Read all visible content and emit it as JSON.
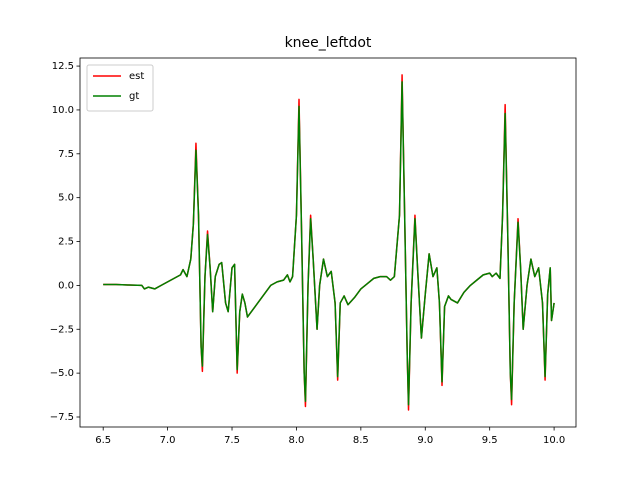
{
  "chart_data": {
    "type": "line",
    "title": "knee_leftdot",
    "x": [
      6.5,
      6.6,
      6.7,
      6.8,
      6.82,
      6.85,
      6.9,
      6.95,
      7.0,
      7.05,
      7.1,
      7.12,
      7.15,
      7.18,
      7.2,
      7.22,
      7.24,
      7.26,
      7.27,
      7.29,
      7.31,
      7.33,
      7.35,
      7.37,
      7.4,
      7.42,
      7.45,
      7.47,
      7.5,
      7.52,
      7.54,
      7.56,
      7.58,
      7.6,
      7.62,
      7.65,
      7.7,
      7.75,
      7.8,
      7.85,
      7.9,
      7.93,
      7.95,
      7.97,
      8.0,
      8.02,
      8.04,
      8.06,
      8.07,
      8.09,
      8.11,
      8.13,
      8.16,
      8.18,
      8.21,
      8.24,
      8.27,
      8.3,
      8.32,
      8.34,
      8.37,
      8.4,
      8.45,
      8.5,
      8.55,
      8.6,
      8.65,
      8.7,
      8.73,
      8.76,
      8.8,
      8.82,
      8.84,
      8.86,
      8.87,
      8.89,
      8.92,
      8.94,
      8.97,
      9.0,
      9.03,
      9.06,
      9.09,
      9.11,
      9.13,
      9.15,
      9.18,
      9.2,
      9.25,
      9.3,
      9.35,
      9.4,
      9.45,
      9.5,
      9.52,
      9.55,
      9.58,
      9.6,
      9.62,
      9.64,
      9.66,
      9.67,
      9.69,
      9.72,
      9.74,
      9.76,
      9.79,
      9.82,
      9.85,
      9.88,
      9.91,
      9.93,
      9.95,
      9.97,
      9.98,
      10.0
    ],
    "series": [
      {
        "name": "est",
        "color": "#ff0000",
        "values": [
          0.05,
          0.05,
          0.02,
          0.0,
          -0.2,
          -0.1,
          -0.2,
          0.0,
          0.2,
          0.4,
          0.6,
          0.9,
          0.5,
          1.5,
          3.5,
          8.1,
          4.0,
          -3.5,
          -4.9,
          0.5,
          3.1,
          1.0,
          -1.5,
          0.5,
          1.2,
          1.3,
          -1.0,
          -1.5,
          1.0,
          1.2,
          -5.0,
          -1.5,
          -0.5,
          -1.0,
          -1.8,
          -1.5,
          -1.0,
          -0.5,
          0.0,
          0.2,
          0.3,
          0.6,
          0.2,
          0.5,
          4.0,
          10.6,
          3.0,
          -5.0,
          -6.9,
          0.0,
          4.0,
          1.5,
          -2.5,
          0.0,
          1.5,
          0.5,
          0.8,
          -1.0,
          -5.4,
          -1.0,
          -0.6,
          -1.1,
          -0.7,
          -0.2,
          0.1,
          0.4,
          0.5,
          0.5,
          0.3,
          0.5,
          4.0,
          12.0,
          4.0,
          -4.0,
          -7.1,
          -1.0,
          4.0,
          1.0,
          -3.0,
          -0.5,
          1.8,
          0.5,
          1.0,
          -1.0,
          -5.7,
          -1.2,
          -0.6,
          -0.8,
          -1.0,
          -0.4,
          0.0,
          0.3,
          0.6,
          0.7,
          0.5,
          0.7,
          0.4,
          4.0,
          10.3,
          3.0,
          -5.0,
          -6.8,
          -1.0,
          3.8,
          1.0,
          -2.5,
          0.0,
          1.5,
          0.5,
          1.0,
          -1.0,
          -5.4,
          -0.5,
          1.0,
          -2.0,
          -1.0
        ]
      },
      {
        "name": "gt",
        "color": "#008000",
        "values": [
          0.05,
          0.05,
          0.02,
          0.0,
          -0.2,
          -0.1,
          -0.2,
          0.0,
          0.2,
          0.4,
          0.6,
          0.9,
          0.5,
          1.5,
          3.5,
          7.7,
          4.0,
          -3.5,
          -4.6,
          0.5,
          2.9,
          1.0,
          -1.5,
          0.5,
          1.2,
          1.3,
          -1.0,
          -1.5,
          1.0,
          1.2,
          -4.8,
          -1.5,
          -0.5,
          -1.0,
          -1.8,
          -1.5,
          -1.0,
          -0.5,
          0.0,
          0.2,
          0.3,
          0.6,
          0.2,
          0.5,
          4.0,
          10.2,
          3.0,
          -5.0,
          -6.6,
          0.0,
          3.8,
          1.5,
          -2.5,
          0.0,
          1.5,
          0.5,
          0.8,
          -1.0,
          -5.2,
          -1.0,
          -0.6,
          -1.1,
          -0.7,
          -0.2,
          0.1,
          0.4,
          0.5,
          0.5,
          0.3,
          0.5,
          4.0,
          11.6,
          4.0,
          -4.0,
          -6.8,
          -1.0,
          3.8,
          1.0,
          -3.0,
          -0.5,
          1.8,
          0.5,
          1.0,
          -1.0,
          -5.5,
          -1.2,
          -0.6,
          -0.8,
          -1.0,
          -0.4,
          0.0,
          0.3,
          0.6,
          0.7,
          0.5,
          0.7,
          0.4,
          4.0,
          9.8,
          3.0,
          -5.0,
          -6.5,
          -1.0,
          3.6,
          1.0,
          -2.5,
          0.0,
          1.5,
          0.5,
          1.0,
          -1.0,
          -5.2,
          -0.5,
          1.0,
          -2.0,
          -1.0
        ]
      }
    ],
    "xlim": [
      6.32,
      10.17
    ],
    "xticks": [
      6.5,
      {
        "value": 7,
        "label": "7.0"
      },
      7.5,
      {
        "value": 8,
        "label": "8.0"
      },
      8.5,
      {
        "value": 9,
        "label": "9.0"
      },
      9.5,
      {
        "value": 10,
        "label": "10.0"
      }
    ],
    "ylim": [
      -8.07,
      12.96
    ],
    "yticks": [
      {
        "value": -7.5,
        "label": "−7.5"
      },
      {
        "value": -5,
        "label": "−5.0"
      },
      {
        "value": -2.5,
        "label": "−2.5"
      },
      {
        "value": 0,
        "label": "0.0"
      },
      2.5,
      {
        "value": 5,
        "label": "5.0"
      },
      7.5,
      {
        "value": 10,
        "label": "10.0"
      },
      12.5
    ],
    "legend": "upper left"
  }
}
